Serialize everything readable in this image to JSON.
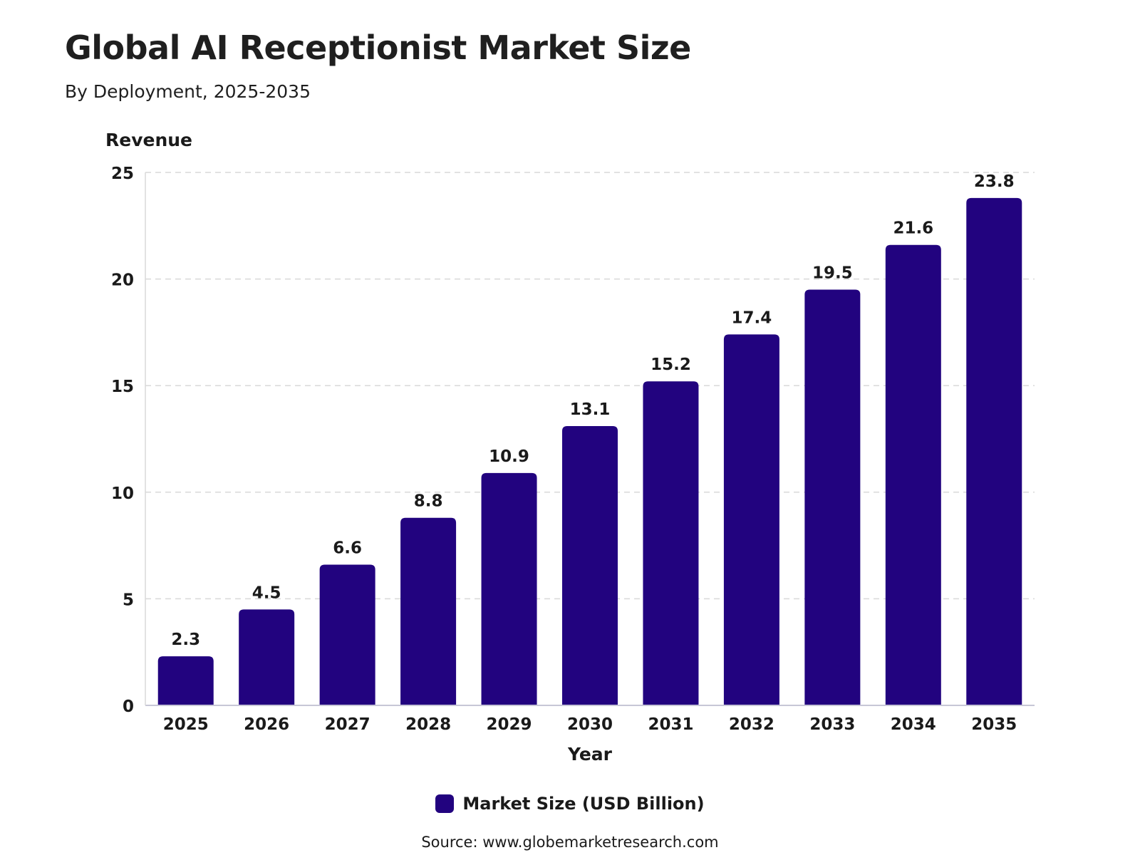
{
  "header": {
    "title": "Global AI Receptionist Market Size",
    "subtitle": "By Deployment, 2025-2035"
  },
  "legend": {
    "label": "Market Size (USD Billion)"
  },
  "source": "Source: www.globemarketresearch.com",
  "colors": {
    "bar": "#22037f",
    "grid": "#d9d9d9",
    "axis": "#c7c7d6"
  },
  "chart_data": {
    "type": "bar",
    "categories": [
      "2025",
      "2026",
      "2027",
      "2028",
      "2029",
      "2030",
      "2031",
      "2032",
      "2033",
      "2034",
      "2035"
    ],
    "series": [
      {
        "name": "Market Size (USD Billion)",
        "values": [
          2.3,
          4.5,
          6.6,
          8.8,
          10.9,
          13.1,
          15.2,
          17.4,
          19.5,
          21.6,
          23.8
        ]
      }
    ],
    "ylabel": "Revenue",
    "xlabel": "Year",
    "ylim": [
      0,
      25
    ],
    "yticks": [
      0,
      5,
      10,
      15,
      20,
      25
    ],
    "grid": true,
    "legend_position": "bottom"
  }
}
